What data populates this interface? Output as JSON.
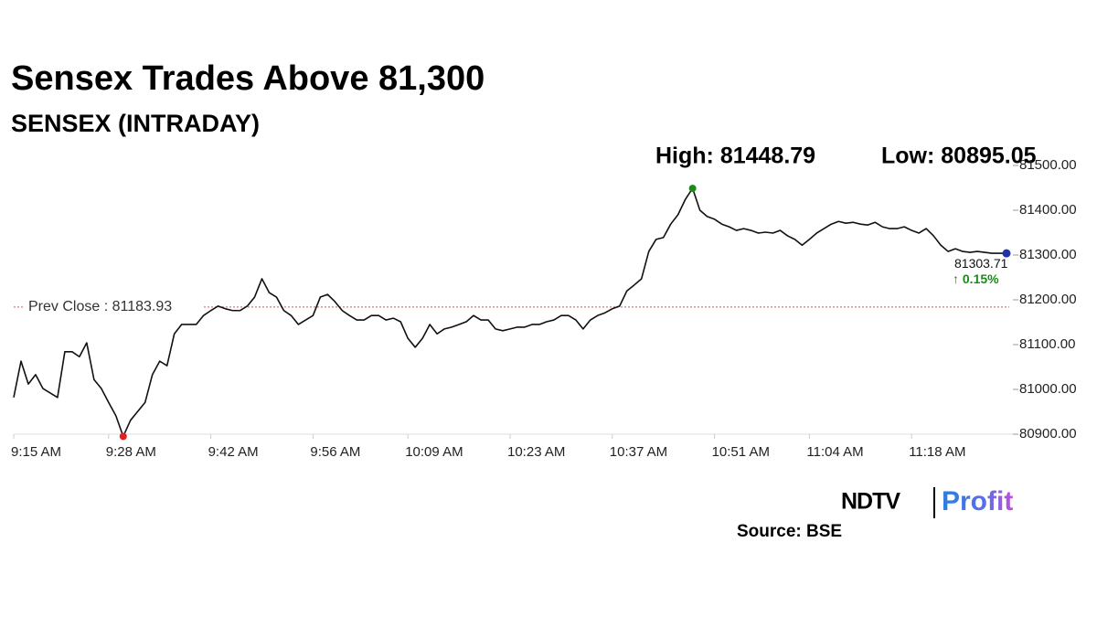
{
  "chart_data": {
    "type": "line",
    "title": "Sensex Trades Above 81,300",
    "subtitle": "SENSEX (INTRADAY)",
    "high_label": "High: 81448.79",
    "low_label": "Low: 80895.05",
    "reference_line": {
      "value": 81183.93,
      "label": "Prev Close : 81183.93",
      "color": "#e05050"
    },
    "last_label": "81303.71",
    "change_label": "↑ 0.15%",
    "source": "Source: BSE",
    "logo": {
      "left": "NDTV",
      "right": "Profit"
    },
    "categories": [
      "9:15 AM",
      null,
      null,
      null,
      null,
      null,
      null,
      null,
      null,
      null,
      null,
      null,
      null,
      "9:28 AM",
      null,
      null,
      null,
      null,
      null,
      null,
      null,
      null,
      null,
      null,
      null,
      null,
      null,
      "9:42 AM",
      null,
      null,
      null,
      null,
      null,
      null,
      null,
      null,
      null,
      null,
      null,
      null,
      null,
      "9:56 AM",
      null,
      null,
      null,
      null,
      null,
      null,
      null,
      null,
      null,
      null,
      null,
      null,
      "10:09 AM",
      null,
      null,
      null,
      null,
      null,
      null,
      null,
      null,
      null,
      null,
      null,
      null,
      null,
      "10:23 AM",
      null,
      null,
      null,
      null,
      null,
      null,
      null,
      null,
      null,
      null,
      null,
      null,
      null,
      "10:37 AM",
      null,
      null,
      null,
      null,
      null,
      null,
      null,
      null,
      null,
      null,
      null,
      null,
      null,
      "10:51 AM",
      null,
      null,
      null,
      null,
      null,
      null,
      null,
      null,
      null,
      null,
      null,
      null,
      "11:04 AM",
      null,
      null,
      null,
      null,
      null,
      null,
      null,
      null,
      null,
      null,
      null,
      null,
      null,
      "11:18 AM",
      null,
      null,
      null,
      null,
      null,
      null,
      null,
      null,
      null,
      null,
      null,
      null,
      null
    ],
    "series": [
      {
        "name": "SENSEX",
        "color": "#111111",
        "values": [
          80982,
          81063,
          81012,
          81033,
          81002,
          80992,
          80982,
          81084,
          81084,
          81073,
          81104,
          81022,
          81002,
          80971,
          80941,
          80895.05,
          80931,
          80951,
          80971,
          81033,
          81063,
          81053,
          81124,
          81145,
          81145,
          81145,
          81165,
          81176,
          81186,
          81180,
          81176,
          81176,
          81186,
          81206,
          81247,
          81216,
          81206,
          81176,
          81165,
          81145,
          81155,
          81165,
          81206,
          81212,
          81196,
          81176,
          81165,
          81155,
          81155,
          81165,
          81165,
          81155,
          81159,
          81151,
          81114,
          81094,
          81114,
          81145,
          81124,
          81135,
          81139,
          81145,
          81151,
          81165,
          81155,
          81155,
          81135,
          81131,
          81135,
          81139,
          81139,
          81145,
          81145,
          81151,
          81155,
          81165,
          81165,
          81155,
          81135,
          81155,
          81165,
          81171,
          81180,
          81186,
          81220,
          81233,
          81247,
          81308,
          81335,
          81339,
          81369,
          81390,
          81424,
          81448.79,
          81400,
          81386,
          81380,
          81369,
          81363,
          81355,
          81359,
          81355,
          81349,
          81351,
          81349,
          81355,
          81343,
          81335,
          81322,
          81335,
          81349,
          81359,
          81369,
          81375,
          81371,
          81373,
          81369,
          81367,
          81373,
          81363,
          81359,
          81359,
          81363,
          81355,
          81349,
          81359,
          81343,
          81322,
          81308,
          81314,
          81308,
          81306,
          81308,
          81306,
          81304,
          81304,
          81303.71
        ]
      }
    ],
    "high_color": "#1a8a1a",
    "low_color": "#e02020",
    "last_color": "#2233aa",
    "change_color": "#1a8a1a",
    "ylim": [
      80900,
      81500
    ],
    "yticks": [
      {
        "value": 80900,
        "label": "80900.00"
      },
      {
        "value": 81000,
        "label": "81000.00"
      },
      {
        "value": 81100,
        "label": "81100.00"
      },
      {
        "value": 81200,
        "label": "81200.00"
      },
      {
        "value": 81300,
        "label": "81300.00"
      },
      {
        "value": 81400,
        "label": "81400.00"
      },
      {
        "value": 81500,
        "label": "81500.00"
      }
    ]
  }
}
